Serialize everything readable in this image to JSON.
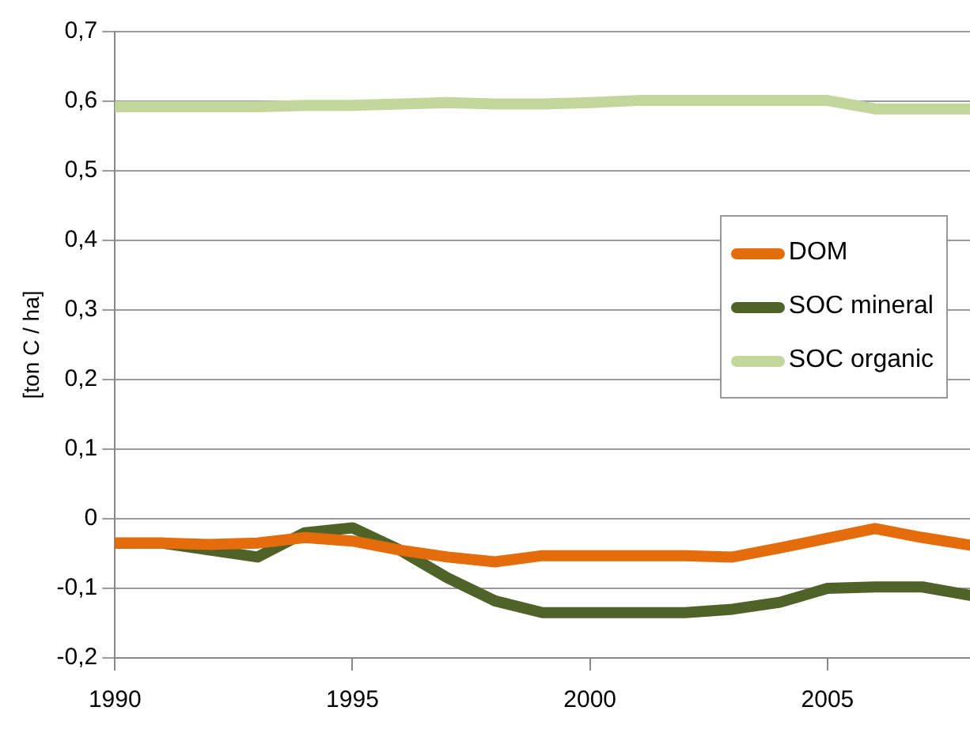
{
  "chart_data": {
    "type": "line",
    "ylabel": "[ton C / ha]",
    "x": [
      1990,
      1991,
      1992,
      1993,
      1994,
      1995,
      1996,
      1997,
      1998,
      1999,
      2000,
      2001,
      2002,
      2003,
      2004,
      2005,
      2006,
      2007,
      2008
    ],
    "series": [
      {
        "name": "DOM",
        "color": "#e46c0a",
        "values": [
          -0.035,
          -0.035,
          -0.037,
          -0.035,
          -0.027,
          -0.032,
          -0.045,
          -0.055,
          -0.062,
          -0.053,
          -0.053,
          -0.053,
          -0.053,
          -0.055,
          -0.042,
          -0.028,
          -0.014,
          -0.027,
          -0.038
        ]
      },
      {
        "name": "SOC mineral",
        "color": "#4f6228",
        "values": [
          -0.035,
          -0.035,
          -0.045,
          -0.055,
          -0.02,
          -0.013,
          -0.045,
          -0.085,
          -0.118,
          -0.135,
          -0.135,
          -0.135,
          -0.135,
          -0.13,
          -0.12,
          -0.1,
          -0.098,
          -0.098,
          -0.11
        ]
      },
      {
        "name": "SOC organic",
        "color": "#c3d69b",
        "values": [
          0.592,
          0.592,
          0.592,
          0.592,
          0.594,
          0.594,
          0.596,
          0.598,
          0.596,
          0.596,
          0.598,
          0.601,
          0.601,
          0.601,
          0.601,
          0.601,
          0.589,
          0.589,
          0.589
        ]
      }
    ],
    "xlim": [
      1990,
      2008
    ],
    "xticks": [
      1990,
      1995,
      2000,
      2005
    ],
    "ylim": [
      -0.2,
      0.7
    ],
    "yticks": [
      {
        "value": -0.2,
        "label": "-0,2"
      },
      {
        "value": -0.1,
        "label": "-0,1"
      },
      {
        "value": 0,
        "label": "0"
      },
      {
        "value": 0.1,
        "label": "0,1"
      },
      {
        "value": 0.2,
        "label": "0,2"
      },
      {
        "value": 0.3,
        "label": "0,3"
      },
      {
        "value": 0.4,
        "label": "0,4"
      },
      {
        "value": 0.5,
        "label": "0,5"
      },
      {
        "value": 0.6,
        "label": "0,6"
      },
      {
        "value": 0.7,
        "label": "0,7"
      }
    ],
    "grid": "y",
    "legend": "right",
    "marker": "none",
    "line_style": "solid"
  }
}
